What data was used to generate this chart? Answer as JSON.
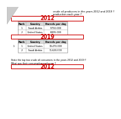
{
  "title_text": "crude oil producers in the years 2012 and 2019 ?\nproduction each year ?",
  "year2012": "2012",
  "year2019": "2019",
  "table2012_headers": [
    "Rank",
    "Country",
    "Barrels per day"
  ],
  "table2012_rows": [
    [
      "1",
      "Saudi Arabia",
      "9,750,000"
    ],
    [
      "2",
      "United States",
      "8,895,000"
    ]
  ],
  "table2019_headers": [
    "Rank",
    "Country",
    "Barrels per day"
  ],
  "table2019_rows": [
    [
      "1",
      "United States",
      "19,470,000"
    ],
    [
      "2",
      "Saudi Arabia",
      "11,620,000"
    ]
  ],
  "footer_text": "State the top two crude oil consumers in the years 2012 and 2019 ?\nWhat was their consumption each year ?",
  "footer_year": "2012",
  "red_color": "#cc0000",
  "bg_color": "#ffffff",
  "text_color": "#000000",
  "table_border": "#999999",
  "header_bg": "#d8d8d8",
  "row_bg": "#ffffff",
  "left_num": "1."
}
